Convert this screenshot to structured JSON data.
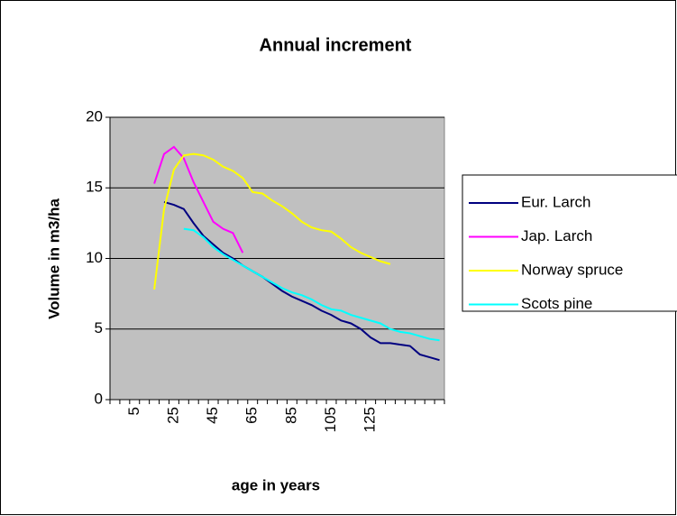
{
  "chart_data": {
    "type": "line",
    "title": "Annual increment",
    "x_label": "age in years",
    "y_label": "Volume in m3/ha",
    "categories": [
      null,
      null,
      "5",
      null,
      null,
      null,
      "25",
      null,
      null,
      null,
      "45",
      null,
      null,
      null,
      "65",
      null,
      null,
      null,
      "85",
      null,
      null,
      null,
      "105",
      null,
      null,
      null,
      "125",
      null,
      null,
      null,
      null,
      null,
      null,
      null
    ],
    "series": [
      {
        "name": "Eur. Larch",
        "color": "#000080",
        "values": [
          null,
          null,
          null,
          null,
          null,
          14.0,
          13.8,
          13.5,
          12.5,
          11.6,
          11.0,
          10.4,
          10.0,
          9.5,
          9.1,
          8.7,
          8.2,
          7.7,
          7.3,
          7.0,
          6.7,
          6.3,
          6.0,
          5.6,
          5.4,
          5.0,
          4.4,
          4.0,
          4.0,
          3.9,
          3.8,
          3.2,
          3.0,
          2.8
        ]
      },
      {
        "name": "Jap. Larch",
        "color": "#ff00ff",
        "values": [
          null,
          null,
          null,
          null,
          15.3,
          17.4,
          17.9,
          17.1,
          15.4,
          14.0,
          12.6,
          12.1,
          11.8,
          10.4,
          null,
          null,
          null,
          null,
          null,
          null,
          null,
          null,
          null,
          null,
          null,
          null,
          null,
          null,
          null,
          null,
          null,
          null,
          null,
          null
        ]
      },
      {
        "name": "Norway spruce",
        "color": "#ffff00",
        "values": [
          null,
          null,
          null,
          null,
          7.8,
          13.5,
          16.3,
          17.3,
          17.4,
          17.3,
          17.0,
          16.5,
          16.2,
          15.7,
          14.7,
          14.6,
          14.1,
          13.7,
          13.2,
          12.6,
          12.2,
          12.0,
          11.9,
          11.4,
          10.8,
          10.4,
          10.1,
          9.8,
          9.6,
          null,
          null,
          null,
          null,
          null
        ]
      },
      {
        "name": "Scots pine",
        "color": "#00ffff",
        "values": [
          null,
          null,
          null,
          null,
          null,
          null,
          null,
          12.1,
          12.0,
          11.5,
          10.8,
          10.3,
          9.9,
          9.5,
          9.1,
          8.7,
          8.3,
          7.9,
          7.6,
          7.4,
          7.1,
          6.7,
          6.4,
          6.3,
          6.0,
          5.8,
          5.6,
          5.4,
          5.0,
          4.8,
          4.7,
          4.5,
          4.3,
          4.2
        ]
      }
    ],
    "ylim": [
      0,
      20
    ],
    "yticks": [
      0,
      5,
      10,
      15,
      20
    ],
    "grid": true,
    "legend": "right",
    "plot_background": "#c0c0c0"
  }
}
